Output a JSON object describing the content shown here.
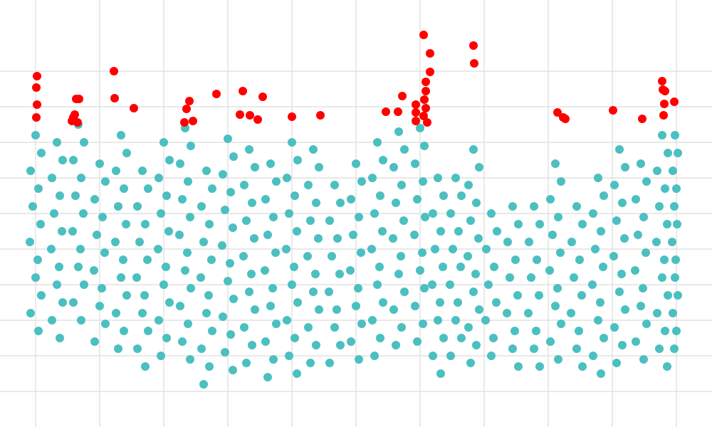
{
  "chart_data": {
    "type": "scatter",
    "xlim": [
      0,
      1000
    ],
    "ylim": [
      0,
      600
    ],
    "xticks": [
      50,
      140,
      230,
      320,
      410,
      500,
      590,
      680,
      770,
      860,
      950
    ],
    "yticks": [
      50,
      100,
      150,
      200,
      250,
      300,
      350,
      400,
      450,
      500
    ],
    "grid": true,
    "series": [
      {
        "color": "#4cbfc0",
        "x": [
          50,
          58,
          43,
          54,
          46,
          57,
          42,
          53,
          50,
          58,
          43,
          54,
          80,
          88,
          73,
          84,
          76,
          87,
          72,
          83,
          80,
          88,
          73,
          84,
          110,
          118,
          103,
          114,
          106,
          117,
          102,
          113,
          110,
          118,
          103,
          114,
          140,
          148,
          133,
          144,
          136,
          147,
          132,
          143,
          140,
          148,
          133,
          170,
          178,
          163,
          174,
          166,
          177,
          162,
          173,
          170,
          178,
          163,
          174,
          166,
          200,
          208,
          193,
          204,
          196,
          207,
          192,
          203,
          200,
          208,
          193,
          204,
          230,
          238,
          223,
          234,
          226,
          237,
          222,
          233,
          230,
          238,
          223,
          234,
          226,
          260,
          268,
          253,
          264,
          256,
          267,
          252,
          263,
          260,
          268,
          253,
          264,
          256,
          267,
          290,
          298,
          283,
          294,
          286,
          297,
          282,
          293,
          290,
          298,
          283,
          294,
          286,
          320,
          328,
          313,
          324,
          316,
          327,
          312,
          323,
          320,
          328,
          313,
          324,
          316,
          327,
          350,
          358,
          343,
          354,
          346,
          357,
          342,
          353,
          350,
          358,
          343,
          354,
          346,
          380,
          388,
          373,
          384,
          376,
          387,
          372,
          383,
          380,
          388,
          373,
          384,
          376,
          410,
          418,
          403,
          414,
          406,
          417,
          402,
          413,
          410,
          418,
          403,
          414,
          406,
          417,
          440,
          448,
          433,
          444,
          436,
          447,
          432,
          443,
          440,
          448,
          433,
          444,
          436,
          470,
          478,
          463,
          474,
          466,
          477,
          462,
          473,
          470,
          478,
          463,
          500,
          508,
          493,
          504,
          496,
          507,
          492,
          503,
          500,
          508,
          493,
          504,
          530,
          538,
          523,
          534,
          526,
          537,
          522,
          533,
          530,
          538,
          523,
          534,
          526,
          560,
          568,
          553,
          564,
          556,
          567,
          552,
          563,
          560,
          568,
          553,
          564,
          556,
          590,
          596,
          583,
          594,
          586,
          597,
          582,
          593,
          590,
          596,
          583,
          594,
          586,
          615,
          623,
          608,
          619,
          611,
          622,
          607,
          618,
          615,
          623,
          608,
          619,
          640,
          648,
          633,
          644,
          636,
          647,
          632,
          643,
          640,
          648,
          633,
          665,
          673,
          658,
          669,
          661,
          672,
          657,
          668,
          665,
          673,
          658,
          669,
          661,
          690,
          698,
          683,
          694,
          686,
          697,
          682,
          693,
          690,
          720,
          728,
          713,
          724,
          716,
          727,
          712,
          723,
          720,
          728,
          750,
          758,
          743,
          754,
          746,
          757,
          742,
          753,
          750,
          758,
          780,
          788,
          773,
          784,
          776,
          787,
          772,
          783,
          780,
          788,
          773,
          784,
          810,
          818,
          803,
          814,
          806,
          817,
          802,
          813,
          810,
          818,
          840,
          848,
          833,
          844,
          836,
          847,
          832,
          843,
          840,
          848,
          833,
          844,
          870,
          878,
          863,
          874,
          866,
          877,
          862,
          873,
          870,
          878,
          863,
          874,
          866,
          900,
          908,
          893,
          904,
          896,
          907,
          892,
          903,
          900,
          908,
          893,
          904,
          930,
          938,
          923,
          934,
          926,
          937,
          922,
          933,
          930,
          938,
          923,
          934,
          926,
          937,
          948,
          952,
          945,
          950,
          947,
          951,
          944,
          949,
          948,
          952,
          945,
          950,
          947
        ],
        "values": [
          410,
          385,
          360,
          335,
          310,
          285,
          260,
          235,
          210,
          185,
          160,
          135,
          400,
          375,
          350,
          325,
          300,
          275,
          250,
          225,
          200,
          175,
          150,
          125,
          425,
          400,
          375,
          350,
          325,
          300,
          275,
          250,
          225,
          200,
          175,
          150,
          370,
          345,
          320,
          295,
          270,
          245,
          220,
          195,
          170,
          145,
          120,
          410,
          385,
          360,
          335,
          310,
          285,
          260,
          235,
          210,
          185,
          160,
          135,
          110,
          360,
          335,
          310,
          285,
          260,
          235,
          210,
          185,
          160,
          135,
          110,
          85,
          400,
          375,
          350,
          325,
          300,
          275,
          250,
          225,
          200,
          175,
          150,
          125,
          100,
          420,
          395,
          370,
          345,
          320,
          295,
          270,
          245,
          220,
          195,
          170,
          145,
          120,
          95,
          360,
          335,
          310,
          285,
          260,
          235,
          210,
          185,
          160,
          135,
          110,
          85,
          60,
          405,
          380,
          355,
          330,
          305,
          280,
          255,
          230,
          205,
          180,
          155,
          130,
          105,
          80,
          390,
          365,
          340,
          315,
          290,
          265,
          240,
          215,
          190,
          165,
          140,
          115,
          90,
          370,
          345,
          320,
          295,
          270,
          245,
          220,
          195,
          170,
          145,
          120,
          95,
          70,
          400,
          375,
          350,
          325,
          300,
          275,
          250,
          225,
          200,
          175,
          150,
          125,
          100,
          75,
          390,
          365,
          340,
          315,
          290,
          265,
          240,
          215,
          190,
          165,
          140,
          115,
          90,
          340,
          315,
          290,
          265,
          240,
          215,
          190,
          165,
          140,
          115,
          90,
          370,
          345,
          320,
          295,
          270,
          245,
          220,
          195,
          170,
          145,
          120,
          95,
          400,
          375,
          350,
          325,
          300,
          275,
          250,
          225,
          200,
          175,
          150,
          125,
          100,
          415,
          390,
          365,
          340,
          315,
          290,
          265,
          240,
          215,
          190,
          165,
          140,
          115,
          420,
          395,
          370,
          345,
          320,
          295,
          270,
          245,
          220,
          195,
          170,
          145,
          120,
          350,
          325,
          300,
          275,
          250,
          225,
          200,
          175,
          150,
          125,
          100,
          75,
          350,
          325,
          300,
          275,
          250,
          225,
          200,
          175,
          150,
          125,
          100,
          390,
          365,
          340,
          315,
          290,
          265,
          240,
          215,
          190,
          165,
          140,
          115,
          90,
          300,
          275,
          250,
          225,
          200,
          175,
          150,
          125,
          100,
          310,
          285,
          260,
          235,
          210,
          185,
          160,
          135,
          110,
          85,
          310,
          285,
          260,
          235,
          210,
          185,
          160,
          135,
          110,
          85,
          370,
          345,
          320,
          295,
          270,
          245,
          220,
          195,
          170,
          145,
          120,
          95,
          310,
          285,
          260,
          235,
          210,
          185,
          160,
          135,
          110,
          85,
          350,
          325,
          300,
          275,
          250,
          225,
          200,
          175,
          150,
          125,
          100,
          75,
          390,
          365,
          340,
          315,
          290,
          265,
          240,
          215,
          190,
          165,
          140,
          115,
          90,
          370,
          345,
          320,
          295,
          270,
          245,
          220,
          195,
          170,
          145,
          120,
          95,
          410,
          385,
          360,
          335,
          310,
          285,
          260,
          235,
          210,
          185,
          160,
          135,
          110,
          85,
          410,
          385,
          360,
          335,
          310,
          285,
          260,
          235,
          210,
          185,
          160,
          135,
          110
        ]
      },
      {
        "color": "#ff0000",
        "x": [
          52,
          51,
          52,
          51,
          103,
          105,
          101,
          107,
          111,
          109,
          160,
          161,
          188,
          266,
          262,
          259,
          271,
          304,
          341,
          337,
          351,
          362,
          369,
          410,
          450,
          542,
          559,
          565,
          584,
          584,
          584,
          595,
          604,
          604,
          598,
          598,
          596,
          598,
          595,
          600,
          665,
          666,
          783,
          791,
          794,
          861,
          902,
          930,
          931,
          934,
          933,
          932,
          947
        ],
        "values": [
          493,
          477,
          453,
          435,
          435,
          439,
          430,
          461,
          461,
          428,
          500,
          462,
          448,
          458,
          447,
          428,
          430,
          468,
          472,
          439,
          438,
          432,
          464,
          436,
          438,
          443,
          443,
          465,
          453,
          442,
          430,
          551,
          525,
          499,
          485,
          472,
          460,
          448,
          437,
          428,
          536,
          511,
          442,
          435,
          433,
          445,
          433,
          486,
          474,
          472,
          454,
          438,
          457
        ]
      }
    ]
  }
}
